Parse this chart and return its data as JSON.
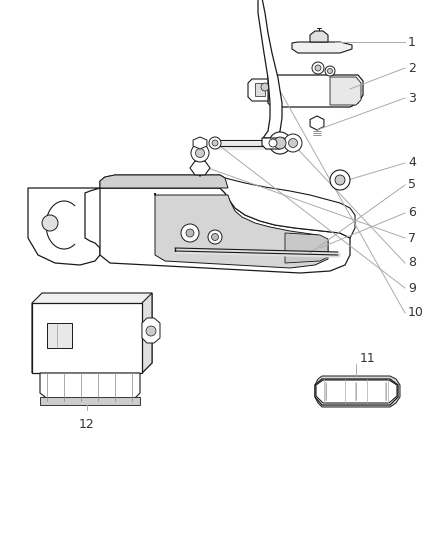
{
  "background_color": "#ffffff",
  "line_color": "#1a1a1a",
  "leader_line_color": "#aaaaaa",
  "label_fontsize": 9,
  "fig_w": 4.38,
  "fig_h": 5.33,
  "dpi": 100
}
